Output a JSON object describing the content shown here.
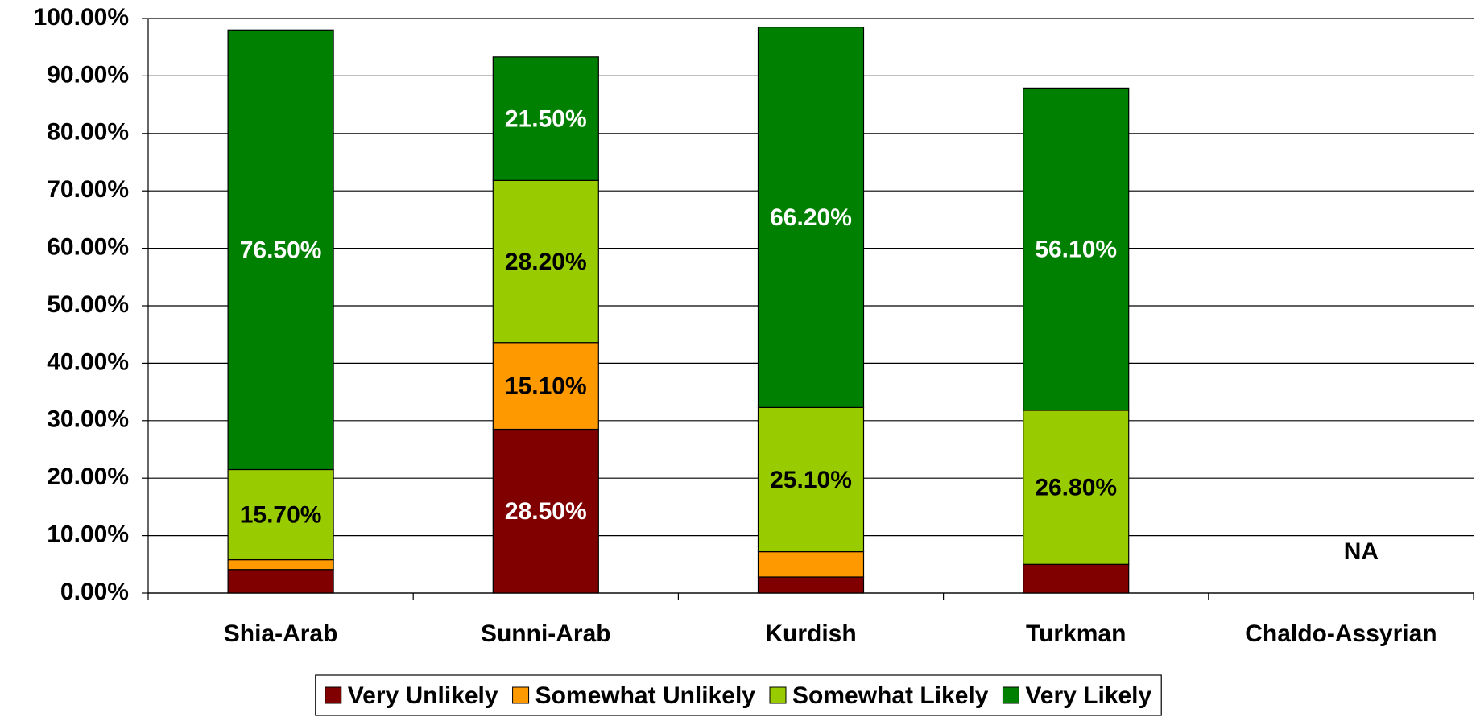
{
  "chart_data": {
    "type": "stacked-bar",
    "categories": [
      "Shia-Arab",
      "Sunni-Arab",
      "Kurdish",
      "Turkman",
      "Chaldo-Assyrian"
    ],
    "series": [
      {
        "name": "Very Unlikely",
        "color": "#800000",
        "label_color": "#ffffff",
        "values": [
          4.1,
          28.5,
          2.8,
          5.0,
          null
        ],
        "value_labels": [
          null,
          "28.50%",
          null,
          null,
          null
        ]
      },
      {
        "name": "Somewhat Unlikely",
        "color": "#ff9900",
        "label_color": "#000000",
        "values": [
          1.7,
          15.1,
          4.4,
          0,
          null
        ],
        "value_labels": [
          null,
          "15.10%",
          null,
          null,
          null
        ]
      },
      {
        "name": "Somewhat Likely",
        "color": "#99cc00",
        "label_color": "#000000",
        "values": [
          15.7,
          28.2,
          25.1,
          26.8,
          null
        ],
        "value_labels": [
          "15.70%",
          "28.20%",
          "25.10%",
          "26.80%",
          null
        ]
      },
      {
        "name": "Very Likely",
        "color": "#008000",
        "label_color": "#ffffff",
        "values": [
          76.5,
          21.5,
          66.2,
          56.1,
          null
        ],
        "value_labels": [
          "76.50%",
          "21.50%",
          "66.20%",
          "56.10%",
          null
        ]
      }
    ],
    "annotation": "NA",
    "ylim": [
      0,
      100
    ],
    "yticks": [
      {
        "value": 0,
        "label": "0.00%"
      },
      {
        "value": 10,
        "label": "10.00%"
      },
      {
        "value": 20,
        "label": "20.00%"
      },
      {
        "value": 30,
        "label": "30.00%"
      },
      {
        "value": 40,
        "label": "40.00%"
      },
      {
        "value": 50,
        "label": "50.00%"
      },
      {
        "value": 60,
        "label": "60.00%"
      },
      {
        "value": 70,
        "label": "70.00%"
      },
      {
        "value": 80,
        "label": "80.00%"
      },
      {
        "value": 90,
        "label": "90.00%"
      },
      {
        "value": 100,
        "label": "100.00%"
      }
    ],
    "grid": true,
    "legend": "bottom"
  }
}
